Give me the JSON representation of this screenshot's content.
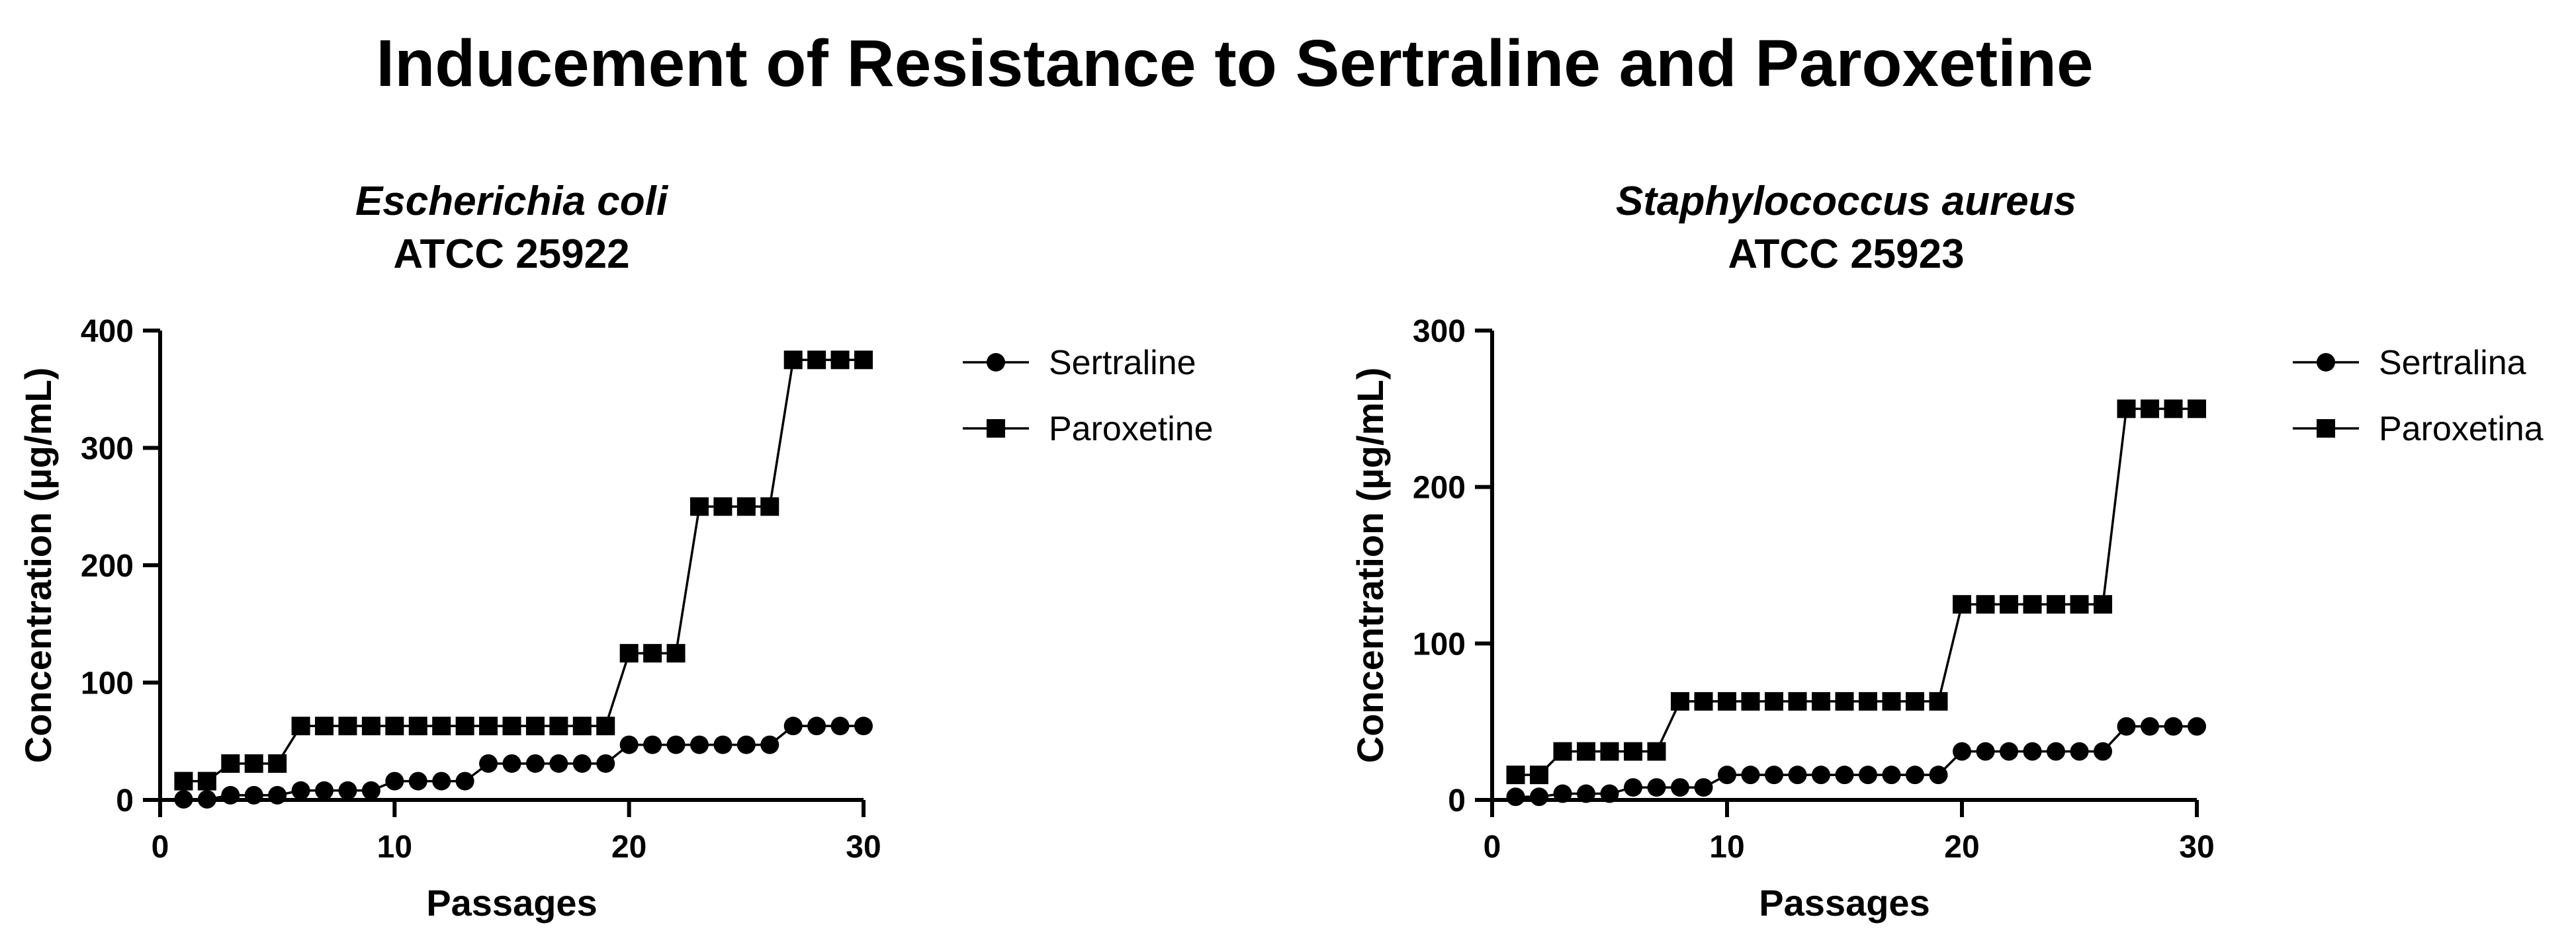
{
  "figure_title": "Inducement of Resistance to Sertraline and Paroxetine",
  "colors": {
    "ink": "#000000",
    "background": "#ffffff"
  },
  "chart_data": [
    {
      "type": "line",
      "title_line1": "Escherichia coli",
      "title_line2": "ATCC 25922",
      "xlabel": "Passages",
      "ylabel": "Concentration (µg/mL)",
      "xlim": [
        0,
        30
      ],
      "ylim": [
        0,
        400
      ],
      "xticks": [
        "0",
        "10",
        "20",
        "30"
      ],
      "yticks": [
        "0",
        "100",
        "200",
        "300",
        "400"
      ],
      "x": [
        1,
        2,
        3,
        4,
        5,
        6,
        7,
        8,
        9,
        10,
        11,
        12,
        13,
        14,
        15,
        16,
        17,
        18,
        19,
        20,
        21,
        22,
        23,
        24,
        25,
        26,
        27,
        28,
        29,
        30
      ],
      "series": [
        {
          "name": "Sertraline",
          "marker": "circle",
          "values": [
            0.5,
            0.5,
            4,
            4,
            4,
            8,
            8,
            8,
            8,
            16,
            16,
            16,
            16,
            31,
            31,
            31,
            31,
            31,
            31,
            47,
            47,
            47,
            47,
            47,
            47,
            47,
            63,
            63,
            63,
            63
          ]
        },
        {
          "name": "Paroxetine",
          "marker": "square",
          "values": [
            16,
            16,
            31,
            31,
            31,
            63,
            63,
            63,
            63,
            63,
            63,
            63,
            63,
            63,
            63,
            63,
            63,
            63,
            63,
            125,
            125,
            125,
            250,
            250,
            250,
            250,
            375,
            375,
            375,
            375
          ]
        }
      ]
    },
    {
      "type": "line",
      "title_line1": "Staphylococcus aureus",
      "title_line2": "ATCC 25923",
      "xlabel": "Passages",
      "ylabel": "Concentration (µg/mL)",
      "xlim": [
        0,
        30
      ],
      "ylim": [
        0,
        300
      ],
      "xticks": [
        "0",
        "10",
        "20",
        "30"
      ],
      "yticks": [
        "0",
        "100",
        "200",
        "300"
      ],
      "x": [
        1,
        2,
        3,
        4,
        5,
        6,
        7,
        8,
        9,
        10,
        11,
        12,
        13,
        14,
        15,
        16,
        17,
        18,
        19,
        20,
        21,
        22,
        23,
        24,
        25,
        26,
        27,
        28,
        29,
        30
      ],
      "series": [
        {
          "name": "Sertralina",
          "marker": "circle",
          "values": [
            2,
            2,
            4,
            4,
            4,
            8,
            8,
            8,
            8,
            16,
            16,
            16,
            16,
            16,
            16,
            16,
            16,
            16,
            16,
            31,
            31,
            31,
            31,
            31,
            31,
            31,
            47,
            47,
            47,
            47
          ]
        },
        {
          "name": "Paroxetina",
          "marker": "square",
          "values": [
            16,
            16,
            31,
            31,
            31,
            31,
            31,
            63,
            63,
            63,
            63,
            63,
            63,
            63,
            63,
            63,
            63,
            63,
            63,
            125,
            125,
            125,
            125,
            125,
            125,
            125,
            250,
            250,
            250,
            250
          ]
        }
      ]
    }
  ]
}
